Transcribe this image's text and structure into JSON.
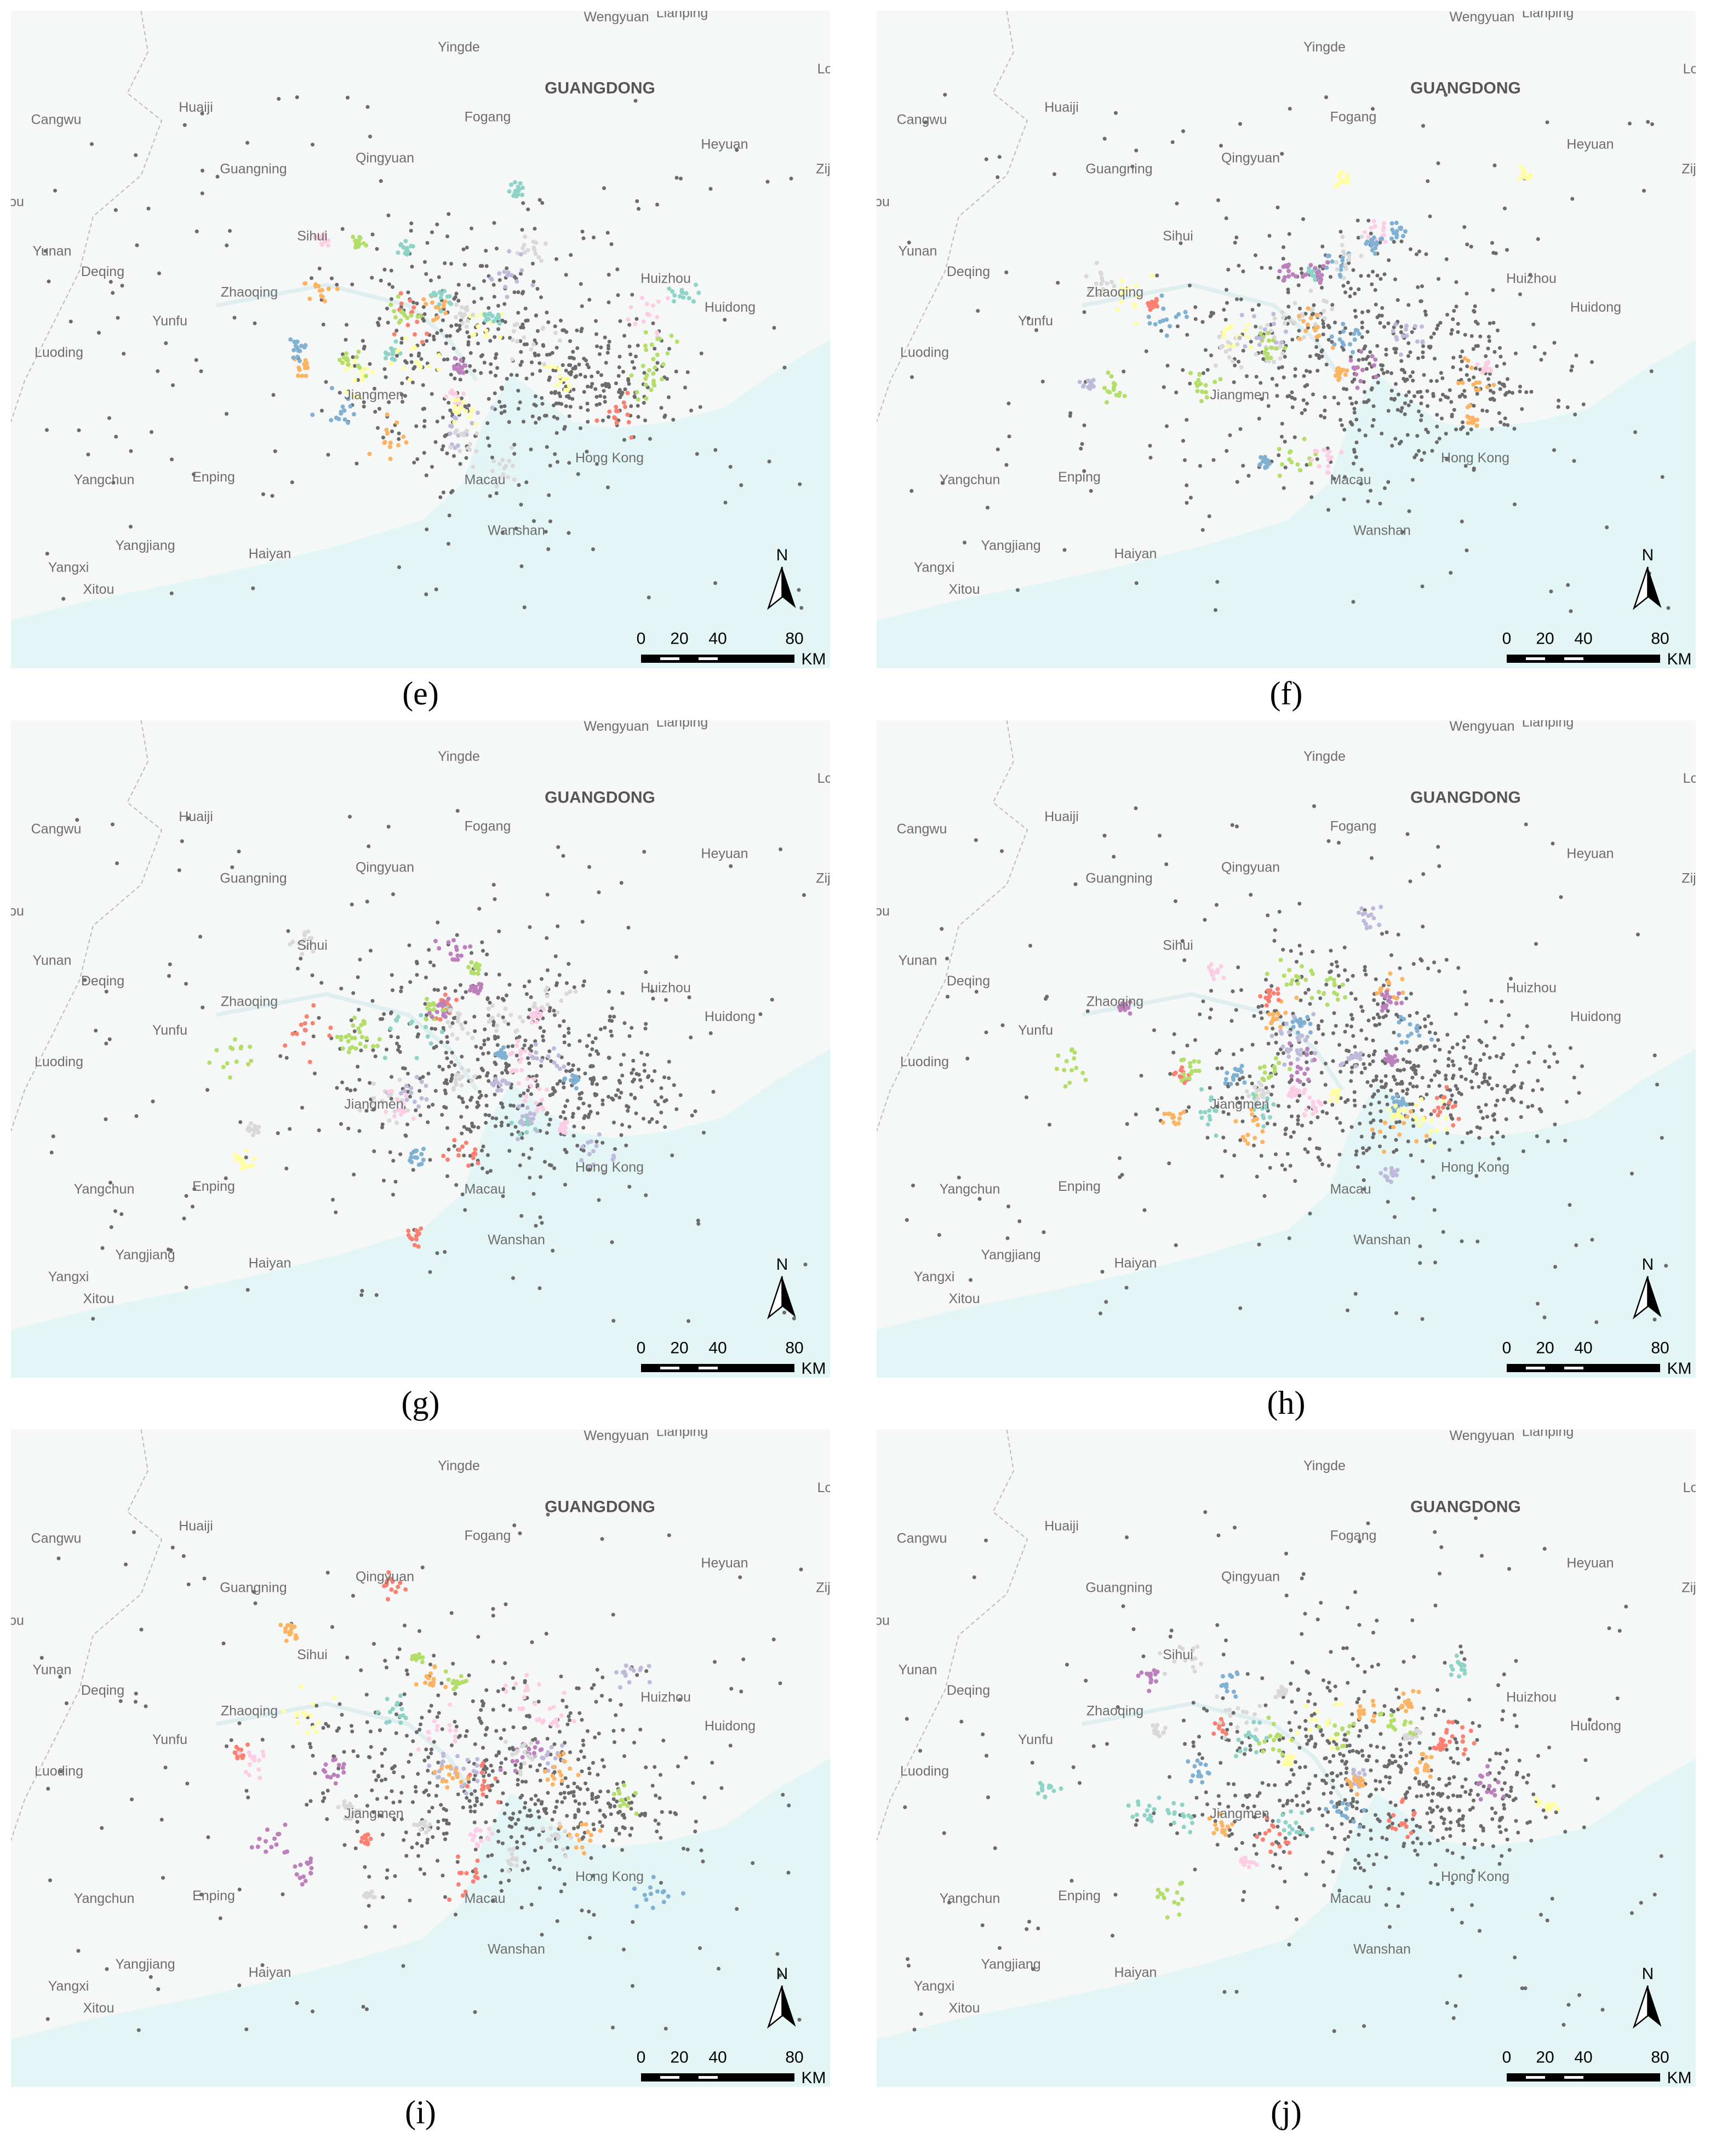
{
  "places": [
    "Wengyuan",
    "Lianping",
    "Yingde",
    "GUANGDONG",
    "Lon",
    "Huaiji",
    "Cangwu",
    "Fogang",
    "Heyuan",
    "Guangning",
    "Qingyuan",
    "Zij",
    "ou",
    "Sihui",
    "Yunan",
    "Deqing",
    "Zhaoqing",
    "Huizhou",
    "Yunfu",
    "Huidong",
    "Luoding",
    "Jiangmen",
    "Yangchun",
    "Enping",
    "Hong Kong",
    "Macau",
    "Wanshan",
    "Yangjiang",
    "Haiyan",
    "Yangxi",
    "Xitou"
  ],
  "scale_bar": {
    "labels": [
      "0",
      "20",
      "40",
      "80"
    ],
    "unit": "KM",
    "north": "N"
  },
  "panels": [
    {
      "caption": "(e)"
    },
    {
      "caption": "(f)"
    },
    {
      "caption": "(g)"
    },
    {
      "caption": "(h)"
    },
    {
      "caption": "(i)"
    },
    {
      "caption": "(j)"
    }
  ]
}
